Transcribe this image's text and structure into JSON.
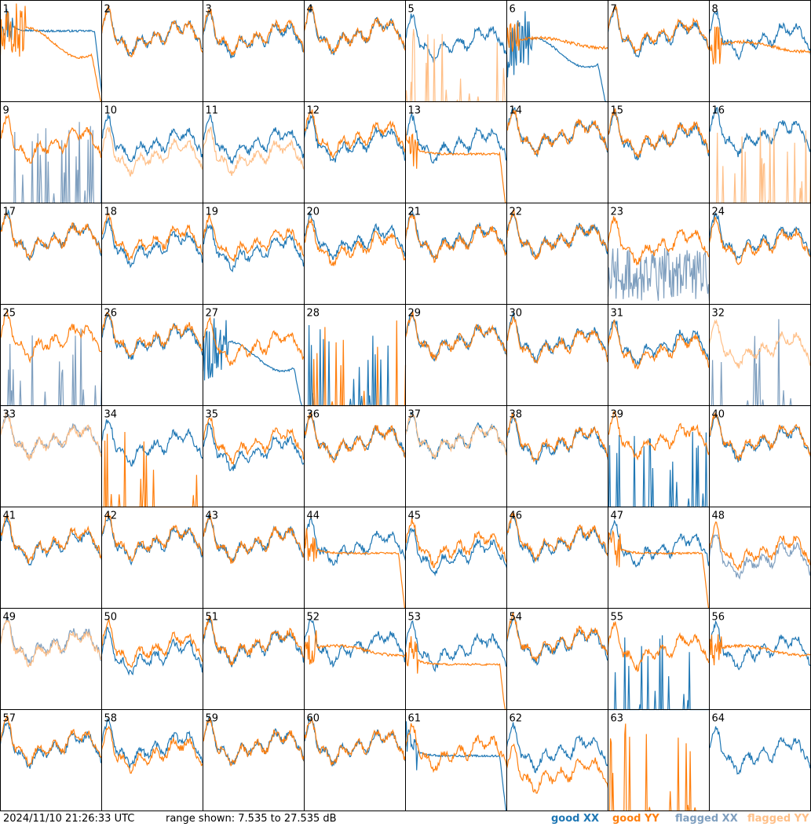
{
  "footer": {
    "timestamp": "2024/11/10 21:26:33 UTC",
    "range": "range shown: 7.535 to 27.535 dB"
  },
  "legend": {
    "good_xx": "good XX",
    "good_yy": "good YY",
    "flagged_xx": "flagged XX",
    "flagged_yy": "flagged YY"
  },
  "colors": {
    "good_xx": "#1f77b4",
    "good_yy": "#ff7f0e",
    "flagged_xx": "#7f9fbf",
    "flagged_yy": "#ffbf87"
  },
  "chart_data": {
    "type": "line",
    "y_unit": "dB",
    "ylim": [
      7.535,
      27.535
    ],
    "grid": {
      "rows": 8,
      "cols": 8
    },
    "series_names": [
      "good XX",
      "good YY",
      "flagged XX",
      "flagged YY"
    ],
    "panels": [
      {
        "id": "1",
        "xx": {
          "state": "good",
          "shape": "drop",
          "level": 0.72
        },
        "yy": {
          "state": "good",
          "shape": "dead",
          "level": 0.6
        }
      },
      {
        "id": "2",
        "xx": {
          "state": "good",
          "shape": "normal",
          "level": 0.78
        },
        "yy": {
          "state": "good",
          "shape": "normal",
          "level": 0.78
        }
      },
      {
        "id": "3",
        "xx": {
          "state": "good",
          "shape": "normal",
          "level": 0.76
        },
        "yy": {
          "state": "good",
          "shape": "normal",
          "level": 0.78
        }
      },
      {
        "id": "4",
        "xx": {
          "state": "good",
          "shape": "normal",
          "level": 0.8
        },
        "yy": {
          "state": "good",
          "shape": "normal",
          "level": 0.8
        }
      },
      {
        "id": "5",
        "xx": {
          "state": "good",
          "shape": "normal",
          "level": 0.72
        },
        "yy": {
          "state": "flagged",
          "shape": "spikes",
          "level": 0.0
        }
      },
      {
        "id": "6",
        "xx": {
          "state": "good",
          "shape": "dead",
          "level": 0.5
        },
        "yy": {
          "state": "good",
          "shape": "flat",
          "level": 0.6
        }
      },
      {
        "id": "7",
        "xx": {
          "state": "good",
          "shape": "normal",
          "level": 0.78
        },
        "yy": {
          "state": "good",
          "shape": "normal",
          "level": 0.8
        }
      },
      {
        "id": "8",
        "xx": {
          "state": "good",
          "shape": "normal",
          "level": 0.76
        },
        "yy": {
          "state": "good",
          "shape": "flat",
          "level": 0.56
        }
      },
      {
        "id": "9",
        "xx": {
          "state": "flagged",
          "shape": "spikes",
          "level": 0.0
        },
        "yy": {
          "state": "good",
          "shape": "normal",
          "level": 0.72
        }
      },
      {
        "id": "10",
        "xx": {
          "state": "good",
          "shape": "normal",
          "level": 0.72
        },
        "yy": {
          "state": "flagged",
          "shape": "normal",
          "level": 0.6
        }
      },
      {
        "id": "11",
        "xx": {
          "state": "good",
          "shape": "normal",
          "level": 0.72
        },
        "yy": {
          "state": "flagged",
          "shape": "normal",
          "level": 0.6
        }
      },
      {
        "id": "12",
        "xx": {
          "state": "good",
          "shape": "normal",
          "level": 0.72
        },
        "yy": {
          "state": "good",
          "shape": "normal",
          "level": 0.78
        }
      },
      {
        "id": "13",
        "xx": {
          "state": "good",
          "shape": "normal",
          "level": 0.72
        },
        "yy": {
          "state": "good",
          "shape": "drop",
          "level": 0.5
        }
      },
      {
        "id": "14",
        "xx": {
          "state": "good",
          "shape": "normal",
          "level": 0.8
        },
        "yy": {
          "state": "good",
          "shape": "normal",
          "level": 0.8
        }
      },
      {
        "id": "15",
        "xx": {
          "state": "good",
          "shape": "normal",
          "level": 0.76
        },
        "yy": {
          "state": "good",
          "shape": "normal",
          "level": 0.78
        }
      },
      {
        "id": "16",
        "xx": {
          "state": "good",
          "shape": "normal",
          "level": 0.8
        },
        "yy": {
          "state": "flagged",
          "shape": "spikes",
          "level": 0.0
        }
      },
      {
        "id": "17",
        "xx": {
          "state": "good",
          "shape": "normal",
          "level": 0.78
        },
        "yy": {
          "state": "good",
          "shape": "normal",
          "level": 0.78
        }
      },
      {
        "id": "18",
        "xx": {
          "state": "good",
          "shape": "normal",
          "level": 0.7
        },
        "yy": {
          "state": "good",
          "shape": "normal",
          "level": 0.76
        }
      },
      {
        "id": "19",
        "xx": {
          "state": "good",
          "shape": "normal",
          "level": 0.66
        },
        "yy": {
          "state": "good",
          "shape": "normal",
          "level": 0.74
        }
      },
      {
        "id": "20",
        "xx": {
          "state": "good",
          "shape": "normal",
          "level": 0.76
        },
        "yy": {
          "state": "good",
          "shape": "normal",
          "level": 0.7
        }
      },
      {
        "id": "21",
        "xx": {
          "state": "good",
          "shape": "normal",
          "level": 0.78
        },
        "yy": {
          "state": "good",
          "shape": "normal",
          "level": 0.76
        }
      },
      {
        "id": "22",
        "xx": {
          "state": "good",
          "shape": "normal",
          "level": 0.78
        },
        "yy": {
          "state": "good",
          "shape": "normal",
          "level": 0.78
        }
      },
      {
        "id": "23",
        "xx": {
          "state": "flagged",
          "shape": "noise",
          "level": 0.3
        },
        "yy": {
          "state": "good",
          "shape": "normal",
          "level": 0.72
        }
      },
      {
        "id": "24",
        "xx": {
          "state": "good",
          "shape": "normal",
          "level": 0.76
        },
        "yy": {
          "state": "good",
          "shape": "normal",
          "level": 0.72
        }
      },
      {
        "id": "25",
        "xx": {
          "state": "flagged",
          "shape": "spikes",
          "level": 0.0
        },
        "yy": {
          "state": "good",
          "shape": "normal",
          "level": 0.78
        }
      },
      {
        "id": "26",
        "xx": {
          "state": "good",
          "shape": "normal",
          "level": 0.78
        },
        "yy": {
          "state": "good",
          "shape": "normal",
          "level": 0.8
        }
      },
      {
        "id": "27",
        "xx": {
          "state": "good",
          "shape": "dead",
          "level": 0.5
        },
        "yy": {
          "state": "good",
          "shape": "normal",
          "level": 0.72
        }
      },
      {
        "id": "28",
        "xx": {
          "state": "good",
          "shape": "spikes",
          "level": 0.0
        },
        "yy": {
          "state": "good",
          "shape": "spikes",
          "level": 0.0
        }
      },
      {
        "id": "29",
        "xx": {
          "state": "good",
          "shape": "normal",
          "level": 0.78
        },
        "yy": {
          "state": "good",
          "shape": "normal",
          "level": 0.78
        }
      },
      {
        "id": "30",
        "xx": {
          "state": "good",
          "shape": "normal",
          "level": 0.76
        },
        "yy": {
          "state": "good",
          "shape": "normal",
          "level": 0.74
        }
      },
      {
        "id": "31",
        "xx": {
          "state": "good",
          "shape": "normal",
          "level": 0.72
        },
        "yy": {
          "state": "good",
          "shape": "normal",
          "level": 0.68
        }
      },
      {
        "id": "32",
        "xx": {
          "state": "flagged",
          "shape": "spikes",
          "level": 0.0
        },
        "yy": {
          "state": "flagged",
          "shape": "normal",
          "level": 0.7
        }
      },
      {
        "id": "33",
        "xx": {
          "state": "flagged",
          "shape": "normal",
          "level": 0.8
        },
        "yy": {
          "state": "flagged",
          "shape": "normal",
          "level": 0.8
        }
      },
      {
        "id": "34",
        "xx": {
          "state": "good",
          "shape": "normal",
          "level": 0.74
        },
        "yy": {
          "state": "good",
          "shape": "spikes",
          "level": 0.0
        }
      },
      {
        "id": "35",
        "xx": {
          "state": "good",
          "shape": "normal",
          "level": 0.68
        },
        "yy": {
          "state": "good",
          "shape": "normal",
          "level": 0.76
        }
      },
      {
        "id": "36",
        "xx": {
          "state": "good",
          "shape": "normal",
          "level": 0.78
        },
        "yy": {
          "state": "good",
          "shape": "normal",
          "level": 0.78
        }
      },
      {
        "id": "37",
        "xx": {
          "state": "good",
          "shape": "normal",
          "level": 0.8
        },
        "yy": {
          "state": "flagged",
          "shape": "normal",
          "level": 0.8
        }
      },
      {
        "id": "38",
        "xx": {
          "state": "good",
          "shape": "normal",
          "level": 0.76
        },
        "yy": {
          "state": "good",
          "shape": "normal",
          "level": 0.78
        }
      },
      {
        "id": "39",
        "xx": {
          "state": "good",
          "shape": "spikes",
          "level": 0.0
        },
        "yy": {
          "state": "good",
          "shape": "normal",
          "level": 0.8
        }
      },
      {
        "id": "40",
        "xx": {
          "state": "good",
          "shape": "normal",
          "level": 0.78
        },
        "yy": {
          "state": "good",
          "shape": "normal",
          "level": 0.8
        }
      },
      {
        "id": "41",
        "xx": {
          "state": "good",
          "shape": "normal",
          "level": 0.76
        },
        "yy": {
          "state": "good",
          "shape": "normal",
          "level": 0.78
        }
      },
      {
        "id": "42",
        "xx": {
          "state": "good",
          "shape": "normal",
          "level": 0.78
        },
        "yy": {
          "state": "good",
          "shape": "normal",
          "level": 0.8
        }
      },
      {
        "id": "43",
        "xx": {
          "state": "good",
          "shape": "normal",
          "level": 0.78
        },
        "yy": {
          "state": "good",
          "shape": "normal",
          "level": 0.78
        }
      },
      {
        "id": "44",
        "xx": {
          "state": "good",
          "shape": "normal",
          "level": 0.74
        },
        "yy": {
          "state": "good",
          "shape": "drop",
          "level": 0.56
        }
      },
      {
        "id": "45",
        "xx": {
          "state": "good",
          "shape": "normal",
          "level": 0.66
        },
        "yy": {
          "state": "good",
          "shape": "normal",
          "level": 0.74
        }
      },
      {
        "id": "46",
        "xx": {
          "state": "good",
          "shape": "normal",
          "level": 0.78
        },
        "yy": {
          "state": "good",
          "shape": "normal",
          "level": 0.8
        }
      },
      {
        "id": "47",
        "xx": {
          "state": "good",
          "shape": "normal",
          "level": 0.72
        },
        "yy": {
          "state": "good",
          "shape": "drop",
          "level": 0.56
        }
      },
      {
        "id": "48",
        "xx": {
          "state": "flagged",
          "shape": "normal",
          "level": 0.62
        },
        "yy": {
          "state": "good",
          "shape": "normal",
          "level": 0.7
        }
      },
      {
        "id": "49",
        "xx": {
          "state": "flagged",
          "shape": "normal",
          "level": 0.78
        },
        "yy": {
          "state": "flagged",
          "shape": "normal",
          "level": 0.76
        }
      },
      {
        "id": "50",
        "xx": {
          "state": "good",
          "shape": "normal",
          "level": 0.66
        },
        "yy": {
          "state": "good",
          "shape": "normal",
          "level": 0.74
        }
      },
      {
        "id": "51",
        "xx": {
          "state": "good",
          "shape": "normal",
          "level": 0.76
        },
        "yy": {
          "state": "good",
          "shape": "normal",
          "level": 0.78
        }
      },
      {
        "id": "52",
        "xx": {
          "state": "good",
          "shape": "normal",
          "level": 0.76
        },
        "yy": {
          "state": "good",
          "shape": "flat",
          "level": 0.6
        }
      },
      {
        "id": "53",
        "xx": {
          "state": "good",
          "shape": "normal",
          "level": 0.72
        },
        "yy": {
          "state": "good",
          "shape": "drop",
          "level": 0.46
        }
      },
      {
        "id": "54",
        "xx": {
          "state": "good",
          "shape": "normal",
          "level": 0.78
        },
        "yy": {
          "state": "good",
          "shape": "normal",
          "level": 0.8
        }
      },
      {
        "id": "55",
        "xx": {
          "state": "good",
          "shape": "spikes",
          "level": 0.0
        },
        "yy": {
          "state": "good",
          "shape": "normal",
          "level": 0.72
        }
      },
      {
        "id": "56",
        "xx": {
          "state": "good",
          "shape": "normal",
          "level": 0.72
        },
        "yy": {
          "state": "good",
          "shape": "flat",
          "level": 0.6
        }
      },
      {
        "id": "57",
        "xx": {
          "state": "good",
          "shape": "normal",
          "level": 0.76
        },
        "yy": {
          "state": "good",
          "shape": "normal",
          "level": 0.78
        }
      },
      {
        "id": "58",
        "xx": {
          "state": "good",
          "shape": "normal",
          "level": 0.76
        },
        "yy": {
          "state": "good",
          "shape": "normal",
          "level": 0.7
        }
      },
      {
        "id": "59",
        "xx": {
          "state": "good",
          "shape": "normal",
          "level": 0.78
        },
        "yy": {
          "state": "good",
          "shape": "normal",
          "level": 0.78
        }
      },
      {
        "id": "60",
        "xx": {
          "state": "good",
          "shape": "normal",
          "level": 0.78
        },
        "yy": {
          "state": "good",
          "shape": "normal",
          "level": 0.78
        }
      },
      {
        "id": "61",
        "xx": {
          "state": "good",
          "shape": "drop",
          "level": 0.56
        },
        "yy": {
          "state": "good",
          "shape": "normal",
          "level": 0.72
        }
      },
      {
        "id": "62",
        "xx": {
          "state": "good",
          "shape": "normal",
          "level": 0.72
        },
        "yy": {
          "state": "good",
          "shape": "normal",
          "level": 0.5
        }
      },
      {
        "id": "63",
        "xx": {
          "state": "good",
          "shape": "none",
          "level": 0.0
        },
        "yy": {
          "state": "good",
          "shape": "spikes",
          "level": 0.0
        }
      },
      {
        "id": "64",
        "xx": {
          "state": "good",
          "shape": "normal",
          "level": 0.7
        },
        "yy": {
          "state": "good",
          "shape": "none",
          "level": 0.0
        }
      }
    ]
  }
}
